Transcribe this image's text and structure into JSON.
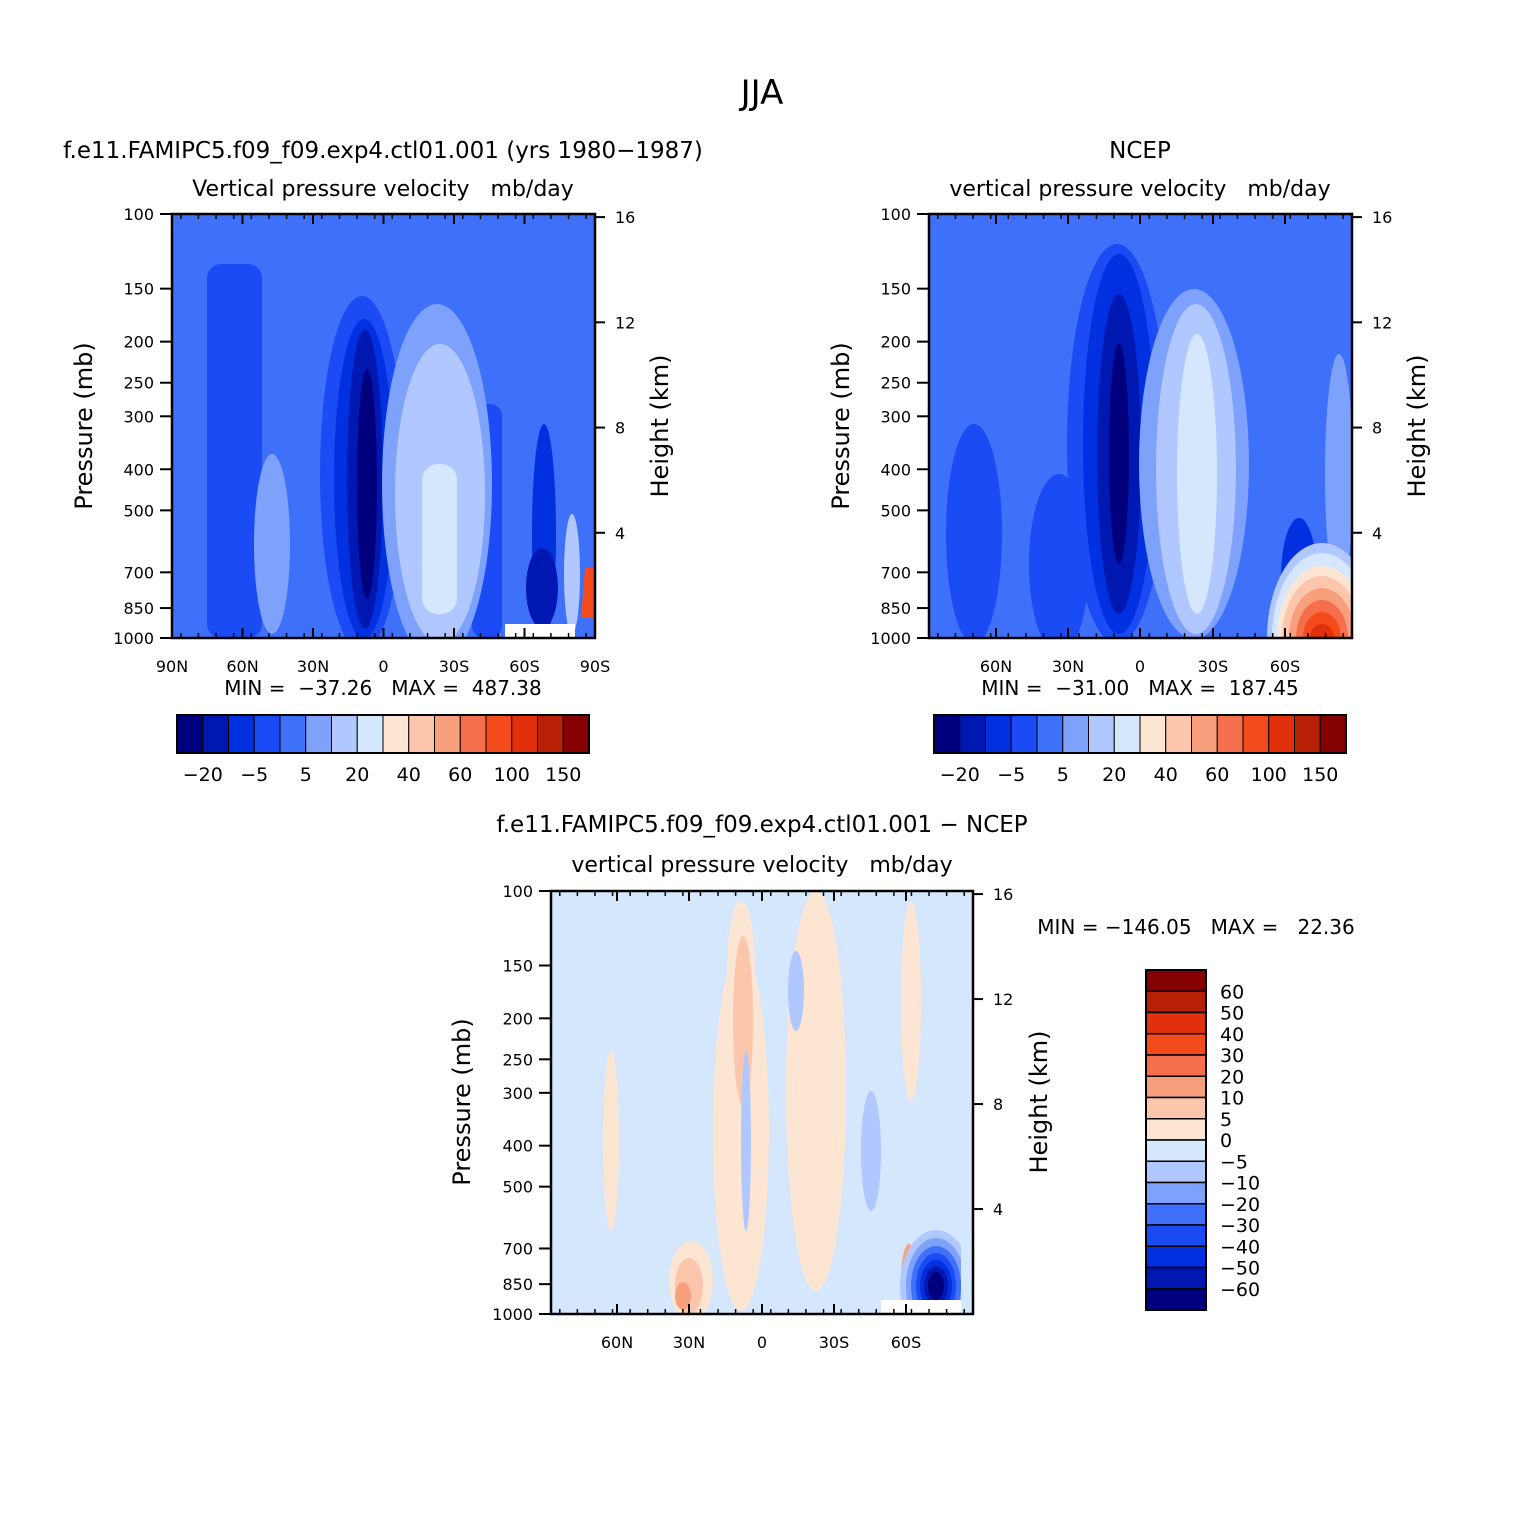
{
  "figure": {
    "title": "JJA"
  },
  "palette": {
    "full": [
      "#00007f",
      "#0018b2",
      "#0030e0",
      "#1a4bf5",
      "#3f70f9",
      "#7ea1fc",
      "#b0c8ff",
      "#d5e7fc",
      "#fde5d3",
      "#fbc6ac",
      "#f8a07e",
      "#f56f4c",
      "#f34b1c",
      "#e1300b",
      "#b72005",
      "#850000"
    ],
    "diff": [
      "#00007f",
      "#0018b2",
      "#0030e0",
      "#1a4bf5",
      "#3f70f9",
      "#7ea1fc",
      "#b0c8ff",
      "#d5e7fc",
      "#fde5d3",
      "#fbc6ac",
      "#f8a07e",
      "#f56f4c",
      "#f34b1c",
      "#e1300b",
      "#b72005",
      "#850000"
    ]
  },
  "chart_data": [
    {
      "type": "heatmap",
      "title": "f.e11.FAMIPC5.f09_f09.exp4.ctl01.001 (yrs 1980−1987)",
      "subtitle": "Vertical pressure velocity   mb/day",
      "ylabel": "Pressure (mb)",
      "y2label": "Height (km)",
      "x_ticklabels": [
        "90N",
        "60N",
        "30N",
        "0",
        "30S",
        "60S",
        "90S"
      ],
      "x_range": [
        "90N",
        "90S"
      ],
      "y_ticks": [
        100,
        150,
        200,
        250,
        300,
        400,
        500,
        700,
        850,
        1000
      ],
      "y_scale": "log",
      "y2_ticks": [
        16,
        12,
        8,
        4
      ],
      "stats": "MIN =  −37.26   MAX =  487.38",
      "min": -37.26,
      "max": 487.38,
      "colorbar_labels": [
        "−20",
        "−5",
        "5",
        "20",
        "40",
        "60",
        "100",
        "150"
      ],
      "colorbar_orientation": "horizontal"
    },
    {
      "type": "heatmap",
      "title": "NCEP",
      "subtitle": "vertical pressure velocity   mb/day",
      "ylabel": "Pressure (mb)",
      "y2label": "Height (km)",
      "x_ticklabels": [
        "60N",
        "30N",
        "0",
        "30S",
        "60S"
      ],
      "y_ticks": [
        100,
        150,
        200,
        250,
        300,
        400,
        500,
        700,
        850,
        1000
      ],
      "y_scale": "log",
      "y2_ticks": [
        16,
        12,
        8,
        4
      ],
      "stats": "MIN =  −31.00   MAX =  187.45",
      "min": -31.0,
      "max": 187.45,
      "colorbar_labels": [
        "−20",
        "−5",
        "5",
        "20",
        "40",
        "60",
        "100",
        "150"
      ],
      "colorbar_orientation": "horizontal"
    },
    {
      "type": "heatmap",
      "title": "f.e11.FAMIPC5.f09_f09.exp4.ctl01.001 − NCEP",
      "subtitle": "vertical pressure velocity   mb/day",
      "ylabel": "Pressure (mb)",
      "y2label": "Height (km)",
      "x_ticklabels": [
        "60N",
        "30N",
        "0",
        "30S",
        "60S"
      ],
      "y_ticks": [
        100,
        150,
        200,
        250,
        300,
        400,
        500,
        700,
        850,
        1000
      ],
      "y_scale": "log",
      "y2_ticks": [
        16,
        12,
        8,
        4
      ],
      "stats": "MIN = −146.05   MAX =   22.36",
      "min": -146.05,
      "max": 22.36,
      "colorbar_labels": [
        "60",
        "50",
        "40",
        "30",
        "20",
        "10",
        "5",
        "0",
        "−5",
        "−10",
        "−20",
        "−30",
        "−40",
        "−50",
        "−60"
      ],
      "colorbar_orientation": "vertical"
    }
  ]
}
